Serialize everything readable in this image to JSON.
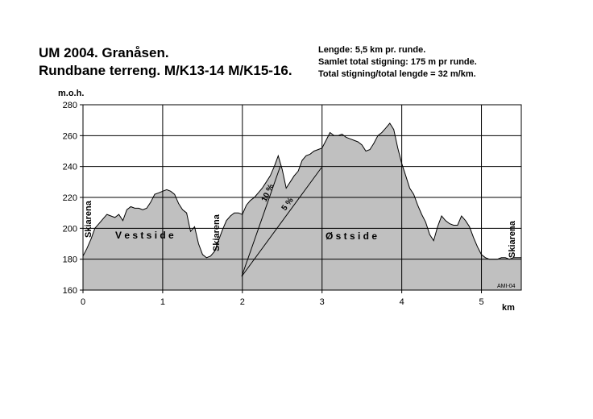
{
  "header": {
    "title_line1": "UM 2004. Granåsen.",
    "title_line2": "Rundbane terreng. M/K13-14 M/K15-16.",
    "info_line1": "Lengde: 5,5 km pr. runde.",
    "info_line2": "Samlet total stigning: 175 m  pr runde.",
    "info_line3": "Total stigning/total lengde = 32 m/km."
  },
  "chart_data": {
    "type": "area",
    "title": "UM 2004. Granåsen. Rundbane terreng. M/K13-14 M/K15-16.",
    "xlabel": "km",
    "ylabel": "m.o.h.",
    "xlim": [
      0,
      5.5
    ],
    "ylim": [
      160,
      280
    ],
    "xticks": [
      0,
      1,
      2,
      3,
      4,
      5
    ],
    "yticks": [
      160,
      180,
      200,
      220,
      240,
      260,
      280
    ],
    "grid": true,
    "fill_color": "#c0c0c0",
    "series": [
      {
        "x": [
          0,
          0.05,
          0.1,
          0.15,
          0.2,
          0.25,
          0.3,
          0.35,
          0.4,
          0.45,
          0.5,
          0.55,
          0.6,
          0.65,
          0.7,
          0.75,
          0.8,
          0.85,
          0.9,
          0.95,
          1.0,
          1.05,
          1.1,
          1.15,
          1.2,
          1.25,
          1.3,
          1.35,
          1.4,
          1.45,
          1.5,
          1.55,
          1.6,
          1.65,
          1.7,
          1.75,
          1.8,
          1.85,
          1.9,
          1.95,
          2.0,
          2.05,
          2.1,
          2.15,
          2.2,
          2.25,
          2.3,
          2.35,
          2.4,
          2.45,
          2.5,
          2.55,
          2.6,
          2.65,
          2.7,
          2.75,
          2.8,
          2.85,
          2.9,
          2.95,
          3.0,
          3.05,
          3.1,
          3.15,
          3.2,
          3.25,
          3.3,
          3.35,
          3.4,
          3.45,
          3.5,
          3.55,
          3.6,
          3.65,
          3.7,
          3.75,
          3.8,
          3.85,
          3.9,
          3.95,
          4.0,
          4.05,
          4.1,
          4.15,
          4.2,
          4.25,
          4.3,
          4.35,
          4.4,
          4.45,
          4.5,
          4.55,
          4.6,
          4.65,
          4.7,
          4.75,
          4.8,
          4.85,
          4.9,
          4.95,
          5.0,
          5.05,
          5.1,
          5.15,
          5.2,
          5.25,
          5.3,
          5.35,
          5.4,
          5.45,
          5.5
        ],
        "y": [
          182,
          187,
          193,
          200,
          203,
          206,
          209,
          208,
          207,
          209,
          205,
          212,
          214,
          213,
          213,
          212,
          213,
          217,
          222,
          223,
          224,
          225,
          224,
          222,
          216,
          212,
          210,
          198,
          201,
          190,
          183,
          181,
          182,
          185,
          192,
          199,
          205,
          208,
          210,
          210,
          209,
          215,
          218,
          220,
          223,
          226,
          230,
          234,
          240,
          247,
          238,
          226,
          230,
          234,
          237,
          244,
          247,
          248,
          250,
          251,
          252,
          257,
          262,
          260,
          260,
          261,
          259,
          258,
          257,
          256,
          254,
          250,
          251,
          255,
          260,
          262,
          265,
          268,
          264,
          252,
          242,
          234,
          226,
          222,
          215,
          209,
          204,
          196,
          192,
          201,
          208,
          205,
          203,
          202,
          202,
          208,
          205,
          201,
          194,
          188,
          183,
          181,
          180,
          180,
          180,
          181,
          181,
          180,
          181,
          181,
          181
        ]
      }
    ],
    "annotations": [
      "Vestside",
      "Østside",
      "Skiarena",
      "Skiarena",
      "Skiarena",
      "10 %",
      "5 %",
      "AMI-04"
    ]
  },
  "labels": {
    "ylabel": "m.o.h.",
    "xlabel": "km",
    "vestside": "V e s t s i d e",
    "ostside": "Ø s t s i d e",
    "skiarena_left": "Skiarena",
    "skiarena_mid": "Skiarena",
    "skiarena_right": "Skiarena",
    "slope_10": "10 %",
    "slope_5": "5 %",
    "credit": "AMI-04"
  }
}
